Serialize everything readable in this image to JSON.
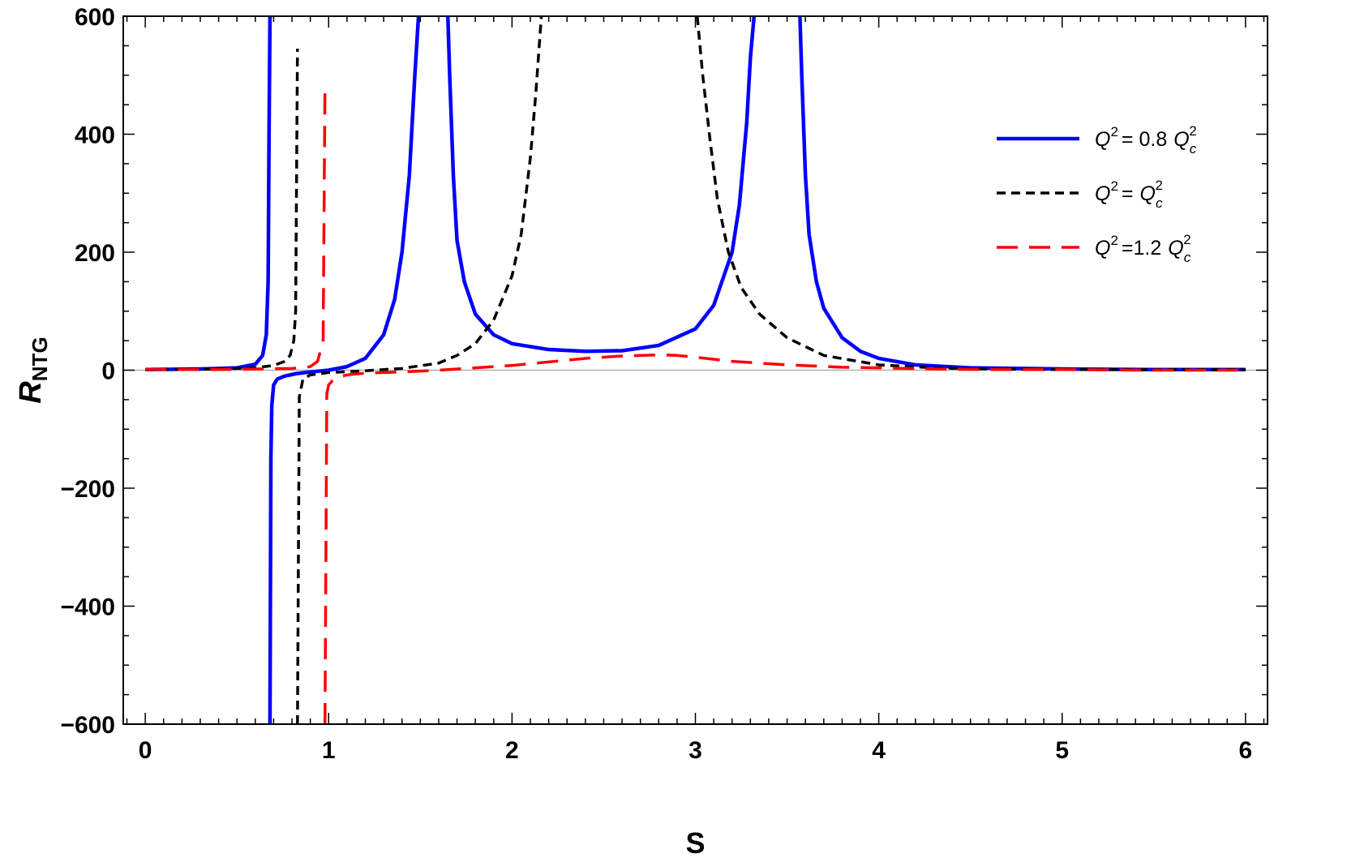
{
  "chart_data": {
    "type": "line",
    "title": "",
    "xlabel": "S",
    "ylabel": {
      "main": "R",
      "sub": "NTG"
    },
    "xlim": [
      -0.12,
      6.12
    ],
    "ylim": [
      -600,
      600
    ],
    "xticks": [
      0,
      1,
      2,
      3,
      4,
      5,
      6
    ],
    "xtick_labels": [
      "0",
      "1",
      "2",
      "3",
      "4",
      "5",
      "6"
    ],
    "yticks": [
      -600,
      -400,
      -200,
      0,
      200,
      400,
      600
    ],
    "ytick_labels": [
      "−600",
      "−400",
      "−200",
      "0",
      "200",
      "400",
      "600"
    ],
    "grid": false,
    "zero_line": true,
    "legend_position": "top-right",
    "colors": {
      "blue": "#0000ff",
      "black": "#000000",
      "red": "#ff0000",
      "zero_line": "#b0b0b0"
    },
    "legend": [
      {
        "series": "blue",
        "q": "Q",
        "sup1": "2",
        "eq": "= 0.8",
        "qc": "Q",
        "sub": "c",
        "sup2": "2"
      },
      {
        "series": "black",
        "q": "Q",
        "sup1": "2",
        "eq": "=",
        "qc": "Q",
        "sub": "c",
        "sup2": "2"
      },
      {
        "series": "red",
        "q": "Q",
        "sup1": "2",
        "eq": "=1.2",
        "qc": "Q",
        "sub": "c",
        "sup2": "2"
      }
    ],
    "series": [
      {
        "id": "blue",
        "style": "solid",
        "segments": [
          {
            "x": [
              0,
              0.3,
              0.5,
              0.6,
              0.64,
              0.66,
              0.67,
              0.675,
              0.68
            ],
            "y": [
              1,
              2,
              4,
              10,
              25,
              60,
              150,
              400,
              600
            ]
          },
          {
            "x": [
              0.68,
              0.685,
              0.69,
              0.7,
              0.72,
              0.76,
              0.82,
              0.9,
              1.0,
              1.1,
              1.2,
              1.3,
              1.36,
              1.4,
              1.44,
              1.47,
              1.49,
              1.5
            ],
            "y": [
              -600,
              -150,
              -60,
              -25,
              -15,
              -10,
              -6,
              -3,
              0,
              6,
              20,
              60,
              120,
              200,
              330,
              500,
              600,
              600
            ]
          },
          {
            "x": [
              1.65,
              1.66,
              1.68,
              1.7,
              1.74,
              1.8,
              1.9,
              2.0,
              2.2,
              2.4,
              2.6,
              2.8,
              3.0,
              3.1,
              3.2,
              3.24,
              3.28,
              3.3,
              3.32
            ],
            "y": [
              600,
              500,
              330,
              220,
              150,
              95,
              60,
              45,
              35,
              32,
              33,
              42,
              70,
              110,
              200,
              280,
              420,
              530,
              600
            ]
          },
          {
            "x": [
              3.57,
              3.58,
              3.6,
              3.62,
              3.66,
              3.7,
              3.8,
              3.9,
              4.0,
              4.2,
              4.5,
              5.0,
              5.5,
              6.0
            ],
            "y": [
              600,
              500,
              330,
              230,
              150,
              105,
              55,
              32,
              20,
              9,
              4,
              2,
              1,
              1
            ]
          }
        ]
      },
      {
        "id": "black",
        "style": "dashed",
        "segments": [
          {
            "x": [
              0,
              0.4,
              0.6,
              0.7,
              0.76,
              0.79,
              0.81,
              0.82,
              0.83
            ],
            "y": [
              1,
              2,
              4,
              8,
              15,
              25,
              50,
              100,
              545
            ]
          },
          {
            "x": [
              0.83,
              0.84,
              0.86,
              0.9,
              1.0,
              1.2,
              1.4,
              1.6,
              1.7,
              1.8,
              1.9,
              2.0,
              2.05,
              2.1,
              2.13,
              2.16
            ],
            "y": [
              -600,
              -45,
              -15,
              -8,
              -4,
              -1,
              3,
              12,
              25,
              45,
              85,
              160,
              230,
              360,
              470,
              600
            ]
          },
          {
            "x": [
              3.01,
              3.04,
              3.08,
              3.12,
              3.18,
              3.25,
              3.35,
              3.5,
              3.7,
              4.0,
              4.3,
              4.6,
              5.0,
              5.5,
              6.0
            ],
            "y": [
              600,
              500,
              390,
              290,
              200,
              140,
              95,
              55,
              25,
              9,
              4,
              2,
              1,
              1,
              1
            ]
          }
        ]
      },
      {
        "id": "red",
        "style": "longdash",
        "segments": [
          {
            "x": [
              0,
              0.4,
              0.6,
              0.8,
              0.9,
              0.94,
              0.97,
              0.98
            ],
            "y": [
              1,
              1,
              2,
              3,
              6,
              15,
              50,
              485
            ]
          },
          {
            "x": [
              0.98,
              0.99,
              1.0,
              1.02,
              1.05,
              1.1,
              1.2,
              1.4,
              1.6,
              1.8,
              2.0,
              2.2,
              2.4,
              2.6,
              2.8,
              2.9,
              3.0,
              3.2,
              3.5,
              3.8,
              4.0,
              4.3,
              4.6,
              5.0,
              5.5,
              6.0
            ],
            "y": [
              -600,
              -40,
              -25,
              -18,
              -12,
              -8,
              -5,
              -3,
              0,
              4,
              8,
              14,
              20,
              24,
              26,
              25,
              22,
              15,
              9,
              5,
              4,
              2,
              1,
              1,
              0,
              0
            ]
          }
        ]
      }
    ]
  }
}
